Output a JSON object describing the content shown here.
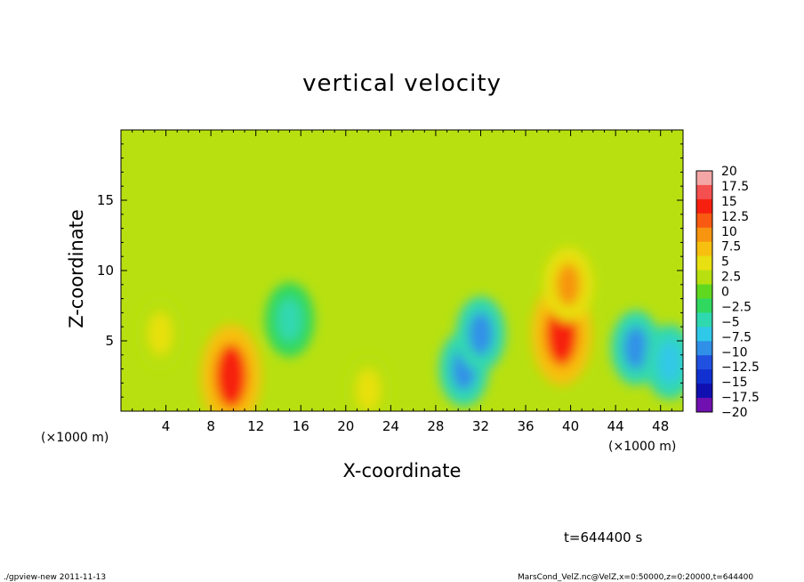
{
  "chart_data": {
    "type": "heatmap",
    "title": "vertical velocity",
    "xlabel": "X-coordinate",
    "ylabel": "Z-coordinate",
    "x_unit_note": "(×1000 m)",
    "y_unit_note": "(×1000 m)",
    "xlim": [
      0,
      50
    ],
    "ylim": [
      0,
      20
    ],
    "x_ticks": [
      4,
      8,
      12,
      16,
      20,
      24,
      28,
      32,
      36,
      40,
      44,
      48
    ],
    "y_ticks": [
      5,
      10,
      15
    ],
    "background_value": 1.5,
    "features": [
      {
        "x": 3.5,
        "z": 5.5,
        "value": 6
      },
      {
        "x": 9.8,
        "z": 2.5,
        "value": 14
      },
      {
        "x": 15.0,
        "z": 6.5,
        "value": -5
      },
      {
        "x": 22.0,
        "z": 1.5,
        "value": 4
      },
      {
        "x": 30.5,
        "z": 3.0,
        "value": -9
      },
      {
        "x": 32.0,
        "z": 5.5,
        "value": -9
      },
      {
        "x": 39.2,
        "z": 5.5,
        "value": 14
      },
      {
        "x": 39.8,
        "z": 9.0,
        "value": 9
      },
      {
        "x": 45.8,
        "z": 4.5,
        "value": -9
      },
      {
        "x": 48.8,
        "z": 3.5,
        "value": -8
      }
    ],
    "colorbar": {
      "labels": [
        "20",
        "17.5",
        "15",
        "12.5",
        "10",
        "7.5",
        "5",
        "2.5",
        "0",
        "−2.5",
        "−5",
        "−7.5",
        "−10",
        "−12.5",
        "−15",
        "−17.5",
        "−20"
      ],
      "colors": [
        "#f4a6a6",
        "#f55050",
        "#f72010",
        "#f75a10",
        "#f79410",
        "#f7c010",
        "#e8e010",
        "#b8e010",
        "#60d820",
        "#30d860",
        "#30d8b0",
        "#30c8e8",
        "#3090e8",
        "#2050e0",
        "#1030d0",
        "#1010b0",
        "#7010b0"
      ]
    }
  },
  "footer": {
    "left": "./gpview-new   2011-11-13",
    "right": "MarsCond_VelZ.nc@VelZ,x=0:50000,z=0:20000,t=644400",
    "time": "t=644400 s"
  }
}
